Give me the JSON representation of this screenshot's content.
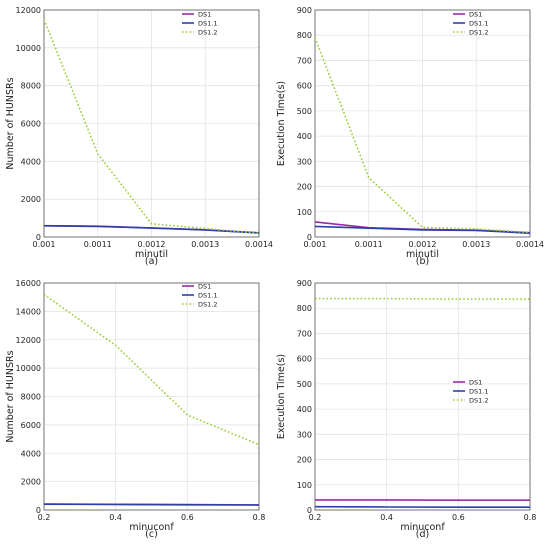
{
  "chart_data": [
    {
      "type": "line",
      "caption": "(a)",
      "xlabel": "minutil",
      "ylabel": "Number of HUNSRs",
      "x": [
        0.001,
        0.0011,
        0.0012,
        0.0013,
        0.0014
      ],
      "x_tick_labels": [
        "0.001",
        "0.0011",
        "0.0012",
        "0.0013",
        "0.0014"
      ],
      "xlim": [
        0.001,
        0.0014
      ],
      "ylim": [
        0,
        12000
      ],
      "y_ticks": [
        0,
        2000,
        4000,
        6000,
        8000,
        10000,
        12000
      ],
      "grid": true,
      "legend_position": "top-right",
      "series": [
        {
          "name": "DS1",
          "color": "#9b2aa8",
          "dash": "solid",
          "values": [
            600,
            570,
            480,
            380,
            220
          ]
        },
        {
          "name": "DS1.1",
          "color": "#2b3fa8",
          "dash": "solid",
          "values": [
            590,
            560,
            470,
            370,
            210
          ]
        },
        {
          "name": "DS1.2",
          "color": "#9acd32",
          "dash": "dotted",
          "values": [
            11500,
            4400,
            700,
            450,
            190
          ]
        }
      ]
    },
    {
      "type": "line",
      "caption": "(b)",
      "xlabel": "minutil",
      "ylabel": "Execution Time(s)",
      "x": [
        0.001,
        0.0011,
        0.0012,
        0.0013,
        0.0014
      ],
      "x_tick_labels": [
        "0.001",
        "0.0011",
        "0.0012",
        "0.0013",
        "0.0014"
      ],
      "xlim": [
        0.001,
        0.0014
      ],
      "ylim": [
        0,
        900
      ],
      "y_ticks": [
        0,
        100,
        200,
        300,
        400,
        500,
        600,
        700,
        800,
        900
      ],
      "grid": true,
      "legend_position": "top-right",
      "series": [
        {
          "name": "DS1",
          "color": "#9b2aa8",
          "dash": "solid",
          "values": [
            60,
            37,
            30,
            27,
            17
          ]
        },
        {
          "name": "DS1.1",
          "color": "#2b3fa8",
          "dash": "solid",
          "values": [
            42,
            35,
            28,
            26,
            15
          ]
        },
        {
          "name": "DS1.2",
          "color": "#9acd32",
          "dash": "dotted",
          "values": [
            790,
            235,
            38,
            32,
            18
          ]
        }
      ]
    },
    {
      "type": "line",
      "caption": "(c)",
      "xlabel": "minuconf",
      "ylabel": "Number of HUNSRs",
      "x": [
        0.2,
        0.4,
        0.6,
        0.8
      ],
      "x_tick_labels": [
        "0.2",
        "0.4",
        "0.6",
        "0.8"
      ],
      "xlim": [
        0.2,
        0.8
      ],
      "ylim": [
        0,
        16000
      ],
      "y_ticks": [
        0,
        2000,
        4000,
        6000,
        8000,
        10000,
        12000,
        14000,
        16000
      ],
      "grid": true,
      "legend_position": "top-right",
      "series": [
        {
          "name": "DS1",
          "color": "#9b2aa8",
          "dash": "solid",
          "values": [
            420,
            400,
            380,
            360
          ]
        },
        {
          "name": "DS1.1",
          "color": "#2b3fa8",
          "dash": "solid",
          "values": [
            410,
            390,
            370,
            350
          ]
        },
        {
          "name": "DS1.2",
          "color": "#9acd32",
          "dash": "dotted",
          "values": [
            15200,
            11600,
            6700,
            4600
          ]
        }
      ]
    },
    {
      "type": "line",
      "caption": "(d)",
      "xlabel": "minuconf",
      "ylabel": "Execution Time(s)",
      "x": [
        0.2,
        0.4,
        0.6,
        0.8
      ],
      "x_tick_labels": [
        "0.2",
        "0.4",
        "0.6",
        "0.8"
      ],
      "xlim": [
        0.2,
        0.8
      ],
      "ylim": [
        0,
        900
      ],
      "y_ticks": [
        0,
        100,
        200,
        300,
        400,
        500,
        600,
        700,
        800,
        900
      ],
      "grid": true,
      "legend_position": "center-right",
      "series": [
        {
          "name": "DS1",
          "color": "#9b2aa8",
          "dash": "solid",
          "values": [
            40,
            40,
            39,
            39
          ]
        },
        {
          "name": "DS1.1",
          "color": "#2b3fa8",
          "dash": "solid",
          "values": [
            13,
            12,
            11,
            11
          ]
        },
        {
          "name": "DS1.2",
          "color": "#9acd32",
          "dash": "dotted",
          "values": [
            838,
            838,
            836,
            836
          ]
        }
      ]
    }
  ]
}
